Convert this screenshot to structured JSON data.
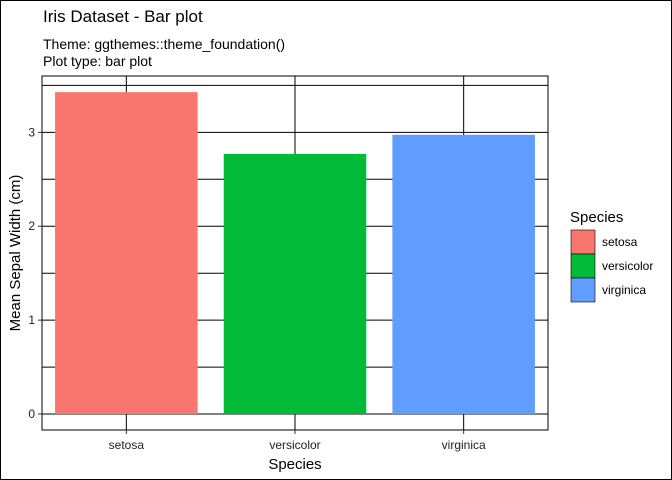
{
  "title": "Iris Dataset - Bar plot",
  "subtitle_line1": "Theme: ggthemes::theme_foundation()",
  "subtitle_line2": "Plot type: bar plot",
  "chart_data": {
    "type": "bar",
    "categories": [
      "setosa",
      "versicolor",
      "virginica"
    ],
    "values": [
      3.428,
      2.77,
      2.974
    ],
    "colors": [
      "#F8766D",
      "#00BA38",
      "#619CFF"
    ],
    "xlabel": "Species",
    "ylabel": "Mean Sepal Width (cm)",
    "yticks": [
      0,
      1,
      2,
      3
    ],
    "ylim": [
      -0.17,
      3.6
    ],
    "grid": true,
    "legend": {
      "title": "Species",
      "position": "right",
      "entries": [
        "setosa",
        "versicolor",
        "virginica"
      ]
    }
  }
}
